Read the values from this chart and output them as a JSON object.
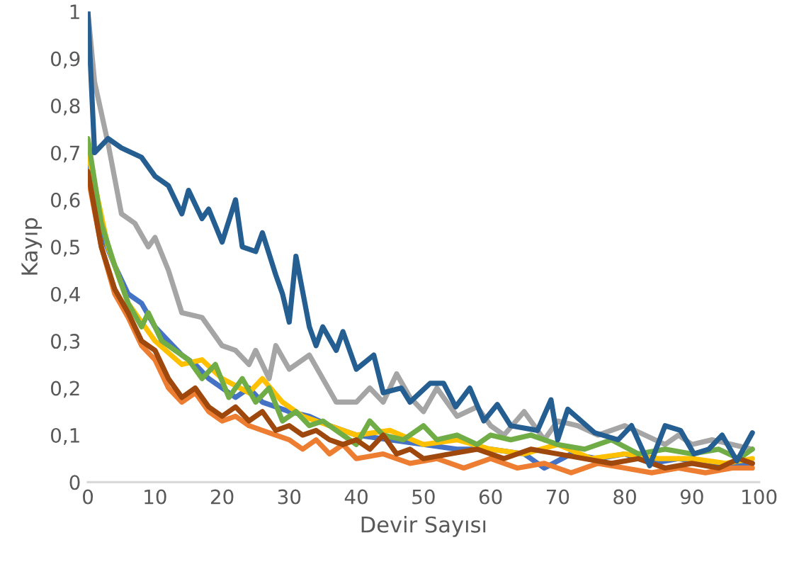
{
  "chart_data": {
    "type": "line",
    "xlabel": "Devir Sayısı",
    "ylabel": "Kayıp",
    "xlim": [
      0,
      100
    ],
    "ylim": [
      0,
      1
    ],
    "xticks": [
      0,
      10,
      20,
      30,
      40,
      50,
      60,
      70,
      80,
      90,
      100
    ],
    "yticks": [
      0,
      {
        "value": 0.1,
        "label": "0,1"
      },
      {
        "value": 0.2,
        "label": "0,2"
      },
      {
        "value": 0.3,
        "label": "0,3"
      },
      {
        "value": 0.4,
        "label": "0,4"
      },
      {
        "value": 0.5,
        "label": "0,5"
      },
      {
        "value": 0.6,
        "label": "0,6"
      },
      {
        "value": 0.7,
        "label": "0,7"
      },
      {
        "value": 0.8,
        "label": "0,8"
      },
      {
        "value": 0.9,
        "label": "0,9"
      },
      1
    ],
    "marker": "none",
    "line_style": "solid",
    "series": [
      {
        "color": "#a5a5a5",
        "x": [
          0,
          1,
          3,
          5,
          7,
          9,
          10,
          12,
          14,
          17,
          20,
          22,
          24,
          25,
          27,
          28,
          30,
          33,
          35,
          37,
          40,
          42,
          44,
          46,
          48,
          50,
          52,
          55,
          58,
          60,
          62,
          65,
          68,
          70,
          73,
          76,
          80,
          83,
          86,
          88,
          90,
          93,
          96,
          99
        ],
        "values": [
          1.0,
          0.85,
          0.72,
          0.57,
          0.55,
          0.5,
          0.52,
          0.45,
          0.36,
          0.35,
          0.29,
          0.28,
          0.25,
          0.28,
          0.22,
          0.29,
          0.24,
          0.27,
          0.22,
          0.17,
          0.17,
          0.2,
          0.17,
          0.23,
          0.18,
          0.15,
          0.2,
          0.14,
          0.16,
          0.12,
          0.1,
          0.15,
          0.09,
          0.13,
          0.12,
          0.1,
          0.12,
          0.1,
          0.08,
          0.1,
          0.08,
          0.09,
          0.08,
          0.07
        ]
      },
      {
        "color": "#4472c4",
        "x": [
          0,
          2,
          4,
          6,
          8,
          10,
          12,
          14,
          16,
          18,
          20,
          22,
          24,
          26,
          28,
          30,
          33,
          36,
          40,
          45,
          50,
          55,
          60,
          65,
          68,
          72,
          76,
          80,
          84,
          88,
          92,
          96,
          99
        ],
        "values": [
          0.68,
          0.53,
          0.46,
          0.4,
          0.38,
          0.33,
          0.3,
          0.27,
          0.25,
          0.22,
          0.2,
          0.18,
          0.2,
          0.17,
          0.16,
          0.15,
          0.14,
          0.12,
          0.1,
          0.09,
          0.08,
          0.07,
          0.07,
          0.06,
          0.03,
          0.06,
          0.05,
          0.06,
          0.04,
          0.05,
          0.04,
          0.04,
          0.04
        ]
      },
      {
        "color": "#ffc000",
        "x": [
          0,
          3,
          6,
          10,
          14,
          17,
          20,
          24,
          26,
          29,
          32,
          36,
          40,
          45,
          50,
          55,
          60,
          65,
          70,
          75,
          80,
          85,
          90,
          95,
          99
        ],
        "values": [
          0.7,
          0.5,
          0.38,
          0.3,
          0.25,
          0.26,
          0.22,
          0.19,
          0.22,
          0.17,
          0.14,
          0.12,
          0.1,
          0.11,
          0.08,
          0.09,
          0.07,
          0.06,
          0.08,
          0.05,
          0.06,
          0.05,
          0.05,
          0.04,
          0.05
        ]
      },
      {
        "color": "#ed7d31",
        "x": [
          0,
          2,
          4,
          6,
          8,
          10,
          12,
          14,
          16,
          18,
          20,
          22,
          24,
          26,
          28,
          30,
          32,
          34,
          36,
          38,
          40,
          44,
          48,
          52,
          56,
          60,
          64,
          68,
          72,
          76,
          80,
          84,
          88,
          92,
          96,
          99
        ],
        "values": [
          0.65,
          0.5,
          0.4,
          0.35,
          0.29,
          0.26,
          0.2,
          0.17,
          0.19,
          0.15,
          0.13,
          0.14,
          0.12,
          0.11,
          0.1,
          0.09,
          0.07,
          0.09,
          0.06,
          0.08,
          0.05,
          0.06,
          0.04,
          0.05,
          0.03,
          0.05,
          0.03,
          0.04,
          0.02,
          0.04,
          0.03,
          0.02,
          0.03,
          0.02,
          0.03,
          0.03
        ]
      },
      {
        "color": "#70ad47",
        "x": [
          0,
          2,
          4,
          6,
          8,
          9,
          11,
          13,
          15,
          17,
          19,
          21,
          23,
          25,
          27,
          29,
          31,
          33,
          35,
          38,
          40,
          42,
          44,
          47,
          50,
          52,
          55,
          58,
          60,
          63,
          66,
          70,
          74,
          78,
          82,
          86,
          90,
          94,
          97,
          99
        ],
        "values": [
          0.73,
          0.55,
          0.46,
          0.38,
          0.33,
          0.36,
          0.3,
          0.28,
          0.26,
          0.22,
          0.25,
          0.18,
          0.22,
          0.17,
          0.2,
          0.13,
          0.15,
          0.12,
          0.13,
          0.1,
          0.08,
          0.13,
          0.1,
          0.09,
          0.12,
          0.09,
          0.1,
          0.08,
          0.1,
          0.09,
          0.1,
          0.08,
          0.07,
          0.09,
          0.06,
          0.07,
          0.06,
          0.07,
          0.05,
          0.07
        ]
      },
      {
        "color": "#9e480e",
        "x": [
          0,
          2,
          4,
          6,
          8,
          10,
          12,
          14,
          16,
          18,
          20,
          22,
          24,
          26,
          28,
          30,
          32,
          34,
          36,
          38,
          40,
          42,
          44,
          46,
          48,
          50,
          54,
          58,
          62,
          66,
          70,
          74,
          78,
          82,
          86,
          90,
          94,
          97,
          99
        ],
        "values": [
          0.66,
          0.5,
          0.41,
          0.36,
          0.3,
          0.28,
          0.22,
          0.18,
          0.2,
          0.16,
          0.14,
          0.16,
          0.13,
          0.15,
          0.11,
          0.12,
          0.1,
          0.11,
          0.09,
          0.08,
          0.09,
          0.07,
          0.1,
          0.06,
          0.07,
          0.05,
          0.06,
          0.07,
          0.05,
          0.07,
          0.06,
          0.05,
          0.04,
          0.05,
          0.03,
          0.04,
          0.03,
          0.05,
          0.04
        ]
      },
      {
        "color": "#255e91",
        "x": [
          0,
          1,
          3,
          5,
          8,
          10,
          12,
          14,
          15,
          17,
          18,
          20,
          22,
          23,
          25,
          26,
          28,
          29,
          30,
          31,
          33,
          34,
          35,
          37,
          38,
          40,
          42.6,
          44,
          46.7,
          48,
          51,
          53,
          54.8,
          56.9,
          59,
          61,
          63,
          67,
          69,
          70,
          71.5,
          75.5,
          79,
          81,
          83.7,
          86,
          88.3,
          90.3,
          92.5,
          94.5,
          96.7,
          99
        ],
        "values": [
          1.0,
          0.7,
          0.73,
          0.71,
          0.69,
          0.65,
          0.63,
          0.57,
          0.62,
          0.56,
          0.58,
          0.51,
          0.6,
          0.5,
          0.49,
          0.53,
          0.44,
          0.4,
          0.34,
          0.48,
          0.33,
          0.29,
          0.33,
          0.28,
          0.32,
          0.24,
          0.27,
          0.19,
          0.2,
          0.17,
          0.21,
          0.21,
          0.16,
          0.2,
          0.13,
          0.165,
          0.12,
          0.11,
          0.175,
          0.09,
          0.155,
          0.105,
          0.09,
          0.12,
          0.035,
          0.12,
          0.11,
          0.06,
          0.07,
          0.1,
          0.045,
          0.105
        ]
      }
    ]
  }
}
